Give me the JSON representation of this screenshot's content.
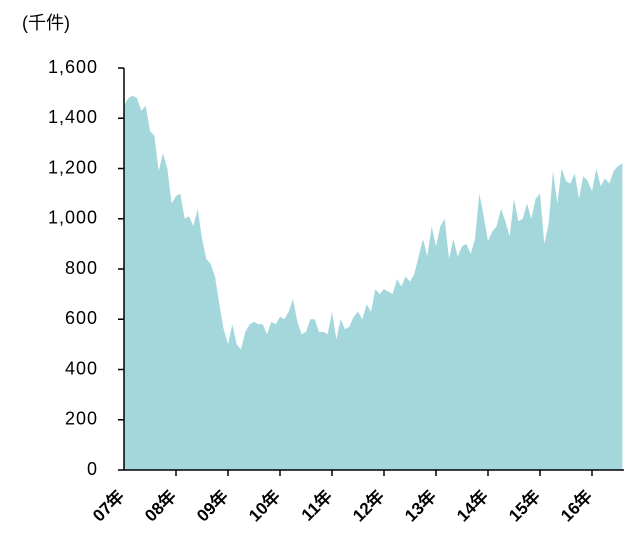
{
  "chart_data": {
    "type": "area",
    "title": "(千件)",
    "categories": [
      "07年",
      null,
      null,
      null,
      null,
      null,
      null,
      null,
      null,
      null,
      null,
      null,
      "08年",
      null,
      null,
      null,
      null,
      null,
      null,
      null,
      null,
      null,
      null,
      null,
      "09年",
      null,
      null,
      null,
      null,
      null,
      null,
      null,
      null,
      null,
      null,
      null,
      "10年",
      null,
      null,
      null,
      null,
      null,
      null,
      null,
      null,
      null,
      null,
      null,
      "11年",
      null,
      null,
      null,
      null,
      null,
      null,
      null,
      null,
      null,
      null,
      null,
      "12年",
      null,
      null,
      null,
      null,
      null,
      null,
      null,
      null,
      null,
      null,
      null,
      "13年",
      null,
      null,
      null,
      null,
      null,
      null,
      null,
      null,
      null,
      null,
      null,
      "14年",
      null,
      null,
      null,
      null,
      null,
      null,
      null,
      null,
      null,
      null,
      null,
      "15年",
      null,
      null,
      null,
      null,
      null,
      null,
      null,
      null,
      null,
      null,
      null,
      "16年",
      null,
      null,
      null,
      null,
      null,
      null,
      null
    ],
    "values": [
      1450,
      1480,
      1490,
      1480,
      1430,
      1450,
      1350,
      1330,
      1190,
      1260,
      1200,
      1060,
      1090,
      1100,
      1000,
      1010,
      970,
      1040,
      920,
      840,
      820,
      770,
      660,
      560,
      500,
      580,
      500,
      480,
      550,
      580,
      590,
      580,
      580,
      540,
      590,
      580,
      610,
      600,
      630,
      680,
      590,
      540,
      550,
      600,
      600,
      550,
      550,
      540,
      630,
      520,
      600,
      560,
      570,
      610,
      630,
      600,
      660,
      630,
      720,
      700,
      720,
      710,
      700,
      760,
      730,
      770,
      750,
      780,
      850,
      920,
      850,
      970,
      890,
      970,
      1000,
      840,
      920,
      850,
      890,
      900,
      860,
      920,
      1100,
      1010,
      910,
      950,
      970,
      1040,
      990,
      930,
      1080,
      990,
      1000,
      1060,
      1000,
      1080,
      1100,
      900,
      980,
      1190,
      1060,
      1200,
      1150,
      1140,
      1180,
      1080,
      1170,
      1150,
      1110,
      1200,
      1130,
      1160,
      1140,
      1190,
      1210,
      1220
    ],
    "color": "#a3d7db",
    "ylim": [
      0,
      1600
    ],
    "yticks": [
      0,
      200,
      400,
      600,
      800,
      {
        "value": 1000,
        "label": "1,000"
      },
      {
        "value": 1200,
        "label": "1,200"
      },
      {
        "value": 1400,
        "label": "1,400"
      },
      {
        "value": 1600,
        "label": "1,600"
      }
    ]
  }
}
